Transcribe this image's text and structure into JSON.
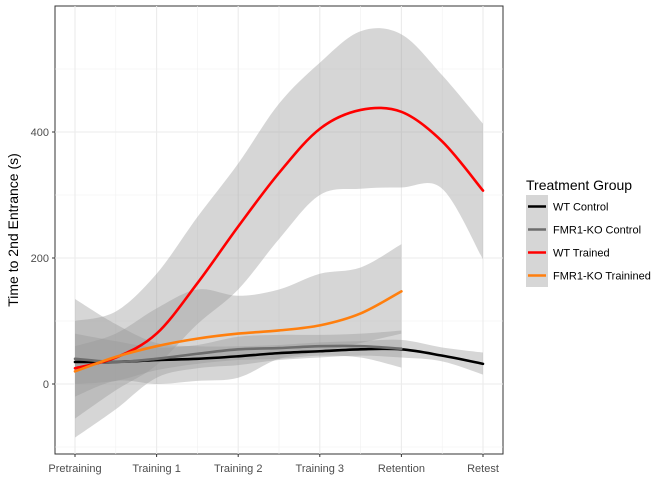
{
  "chart_data": {
    "type": "line",
    "xlabel": "",
    "ylabel": "Time to 2nd Entrance (s)",
    "categories": [
      "Pretraining",
      "Training 1",
      "Training 2",
      "Training 3",
      "Retention",
      "Retest"
    ],
    "ylim": [
      -120,
      580
    ],
    "yticks": [
      0,
      200,
      400
    ],
    "grid": true,
    "legend": {
      "title": "Treatment Group",
      "placement": "right"
    },
    "series": [
      {
        "name": "WT Control",
        "color": "#000000",
        "x": [
          0,
          0.5,
          1,
          1.5,
          2,
          2.5,
          3,
          3.5,
          4,
          4.5,
          5
        ],
        "values": [
          35,
          35,
          38,
          40,
          44,
          49,
          52,
          55,
          55,
          45,
          32
        ],
        "lower": [
          -85,
          -40,
          10,
          25,
          30,
          38,
          42,
          45,
          42,
          36,
          15
        ],
        "upper": [
          135,
          95,
          65,
          60,
          60,
          62,
          66,
          68,
          70,
          58,
          50
        ]
      },
      {
        "name": "FMR1-KO Control",
        "color": "#6d6d6d",
        "x": [
          0,
          0.5,
          1,
          1.5,
          2,
          2.5,
          3,
          3.5,
          4
        ],
        "values": [
          40,
          35,
          40,
          48,
          55,
          57,
          60,
          60,
          56
        ],
        "lower": [
          0,
          5,
          22,
          32,
          38,
          40,
          45,
          42,
          26
        ],
        "upper": [
          80,
          68,
          58,
          62,
          75,
          78,
          78,
          80,
          85
        ]
      },
      {
        "name": "WT Trained",
        "color": "#ff0000",
        "x": [
          0,
          0.5,
          1,
          1.5,
          2,
          2.5,
          3,
          3.5,
          4,
          4.5,
          5
        ],
        "values": [
          25,
          42,
          80,
          160,
          250,
          335,
          405,
          435,
          432,
          385,
          307
        ],
        "lower": [
          -55,
          -10,
          30,
          95,
          150,
          230,
          300,
          310,
          312,
          310,
          198
        ],
        "upper": [
          100,
          115,
          175,
          265,
          350,
          445,
          510,
          560,
          555,
          490,
          413
        ]
      },
      {
        "name": "FMR1-KO Trainined",
        "color": "#ff7f0e",
        "x": [
          0,
          0.5,
          1,
          1.5,
          2,
          2.5,
          3,
          3.5,
          4
        ],
        "values": [
          20,
          43,
          60,
          72,
          80,
          85,
          93,
          112,
          147
        ],
        "lower": [
          -20,
          5,
          0,
          5,
          10,
          40,
          50,
          65,
          80
        ],
        "upper": [
          60,
          80,
          120,
          150,
          140,
          150,
          175,
          185,
          222
        ]
      }
    ]
  }
}
